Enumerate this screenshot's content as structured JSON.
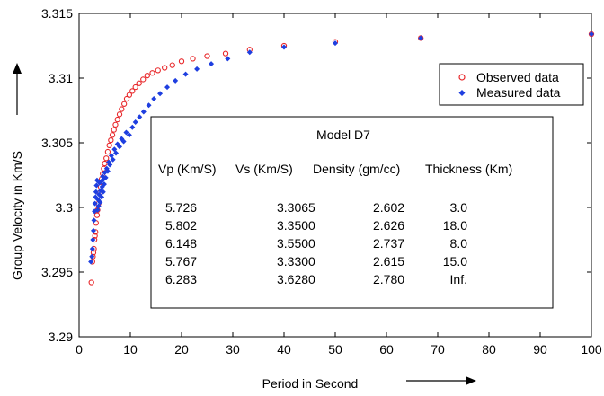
{
  "chart_data": {
    "type": "scatter",
    "xlabel": "Period in Second",
    "ylabel": "Group Velocity in Km/S",
    "xlim": [
      0,
      100
    ],
    "ylim": [
      3.29,
      3.315
    ],
    "xticks": [
      0,
      10,
      20,
      30,
      40,
      50,
      60,
      70,
      80,
      90,
      100
    ],
    "yticks": [
      3.29,
      3.295,
      3.3,
      3.305,
      3.31,
      3.315
    ],
    "ytick_labels": [
      "3.29",
      "3.295",
      "3.3",
      "3.305",
      "3.31",
      "3.315"
    ],
    "grid": false,
    "legend_position": "top-right",
    "series": [
      {
        "name": "Observed data",
        "marker": "circle",
        "color": "#e8272a",
        "points": [
          [
            2.4,
            3.2942
          ],
          [
            2.6,
            3.2958
          ],
          [
            2.7,
            3.2962
          ],
          [
            2.8,
            3.2965
          ],
          [
            2.9,
            3.2968
          ],
          [
            3.0,
            3.2975
          ],
          [
            3.1,
            3.2978
          ],
          [
            3.2,
            3.2981
          ],
          [
            3.3,
            3.2988
          ],
          [
            3.5,
            3.2994
          ],
          [
            3.6,
            3.2998
          ],
          [
            3.8,
            3.3003
          ],
          [
            4.0,
            3.3011
          ],
          [
            4.2,
            3.3016
          ],
          [
            4.4,
            3.3022
          ],
          [
            4.6,
            3.3026
          ],
          [
            4.8,
            3.303
          ],
          [
            5.0,
            3.3034
          ],
          [
            5.3,
            3.3038
          ],
          [
            5.6,
            3.3043
          ],
          [
            5.9,
            3.3048
          ],
          [
            6.2,
            3.3052
          ],
          [
            6.5,
            3.3056
          ],
          [
            6.8,
            3.306
          ],
          [
            7.1,
            3.3064
          ],
          [
            7.5,
            3.3068
          ],
          [
            7.9,
            3.3072
          ],
          [
            8.3,
            3.3076
          ],
          [
            8.8,
            3.308
          ],
          [
            9.3,
            3.3084
          ],
          [
            9.8,
            3.3087
          ],
          [
            10.4,
            3.309
          ],
          [
            11.0,
            3.3093
          ],
          [
            11.7,
            3.3096
          ],
          [
            12.5,
            3.3099
          ],
          [
            13.3,
            3.3102
          ],
          [
            14.3,
            3.3104
          ],
          [
            15.4,
            3.3106
          ],
          [
            16.7,
            3.3108
          ],
          [
            18.2,
            3.311
          ],
          [
            20.0,
            3.3113
          ],
          [
            22.2,
            3.3115
          ],
          [
            25.0,
            3.3117
          ],
          [
            28.6,
            3.3119
          ],
          [
            33.3,
            3.3122
          ],
          [
            40.0,
            3.3125
          ],
          [
            50.0,
            3.3128
          ],
          [
            66.7,
            3.3131
          ],
          [
            100.0,
            3.3134
          ]
        ]
      },
      {
        "name": "Measured data",
        "marker": "diamond",
        "color": "#1f3fe0",
        "points": [
          [
            2.3,
            3.2958
          ],
          [
            2.5,
            3.2962
          ],
          [
            2.6,
            3.2968
          ],
          [
            2.7,
            3.2975
          ],
          [
            2.8,
            3.2982
          ],
          [
            2.9,
            3.299
          ],
          [
            3.0,
            3.2997
          ],
          [
            3.1,
            3.3003
          ],
          [
            3.2,
            3.3008
          ],
          [
            3.3,
            3.3012
          ],
          [
            3.4,
            3.3017
          ],
          [
            3.5,
            3.3021
          ],
          [
            3.6,
            3.2998
          ],
          [
            3.7,
            3.3006
          ],
          [
            3.8,
            3.3001
          ],
          [
            3.9,
            3.301
          ],
          [
            4.0,
            3.3019
          ],
          [
            4.1,
            3.3004
          ],
          [
            4.2,
            3.3013
          ],
          [
            4.3,
            3.302
          ],
          [
            4.4,
            3.3008
          ],
          [
            4.5,
            3.3016
          ],
          [
            4.6,
            3.3024
          ],
          [
            4.7,
            3.3012
          ],
          [
            4.8,
            3.3022
          ],
          [
            4.9,
            3.3018
          ],
          [
            5.0,
            3.3027
          ],
          [
            5.2,
            3.3023
          ],
          [
            5.4,
            3.303
          ],
          [
            5.6,
            3.3028
          ],
          [
            5.8,
            3.3035
          ],
          [
            6.0,
            3.3033
          ],
          [
            6.3,
            3.304
          ],
          [
            6.6,
            3.3037
          ],
          [
            6.9,
            3.3045
          ],
          [
            7.2,
            3.3042
          ],
          [
            7.5,
            3.3049
          ],
          [
            7.9,
            3.3047
          ],
          [
            8.3,
            3.3053
          ],
          [
            8.7,
            3.3051
          ],
          [
            9.2,
            3.3058
          ],
          [
            9.8,
            3.3056
          ],
          [
            10.4,
            3.3062
          ],
          [
            11.0,
            3.3066
          ],
          [
            11.8,
            3.307
          ],
          [
            12.6,
            3.3074
          ],
          [
            13.6,
            3.3079
          ],
          [
            14.6,
            3.3084
          ],
          [
            15.8,
            3.3088
          ],
          [
            17.2,
            3.3093
          ],
          [
            18.8,
            3.3098
          ],
          [
            20.8,
            3.3103
          ],
          [
            23.0,
            3.3107
          ],
          [
            25.8,
            3.3111
          ],
          [
            29.0,
            3.3115
          ],
          [
            33.3,
            3.312
          ],
          [
            40.0,
            3.3124
          ],
          [
            50.0,
            3.3127
          ],
          [
            66.7,
            3.3131
          ],
          [
            100.0,
            3.3134
          ]
        ]
      }
    ],
    "inset_table": {
      "title": "Model D7",
      "columns": [
        "Vp (Km/S)",
        "Vs (Km/S)",
        "Density (gm/cc)",
        "Thickness (Km)"
      ],
      "rows": [
        [
          "5.726",
          "3.3065",
          "2.602",
          "3.0"
        ],
        [
          "5.802",
          "3.3500",
          "2.626",
          "18.0"
        ],
        [
          "6.148",
          "3.5500",
          "2.737",
          "8.0"
        ],
        [
          "5.767",
          "3.3300",
          "2.615",
          "15.0"
        ],
        [
          "6.283",
          "3.6280",
          "2.780",
          "Inf."
        ]
      ]
    }
  }
}
